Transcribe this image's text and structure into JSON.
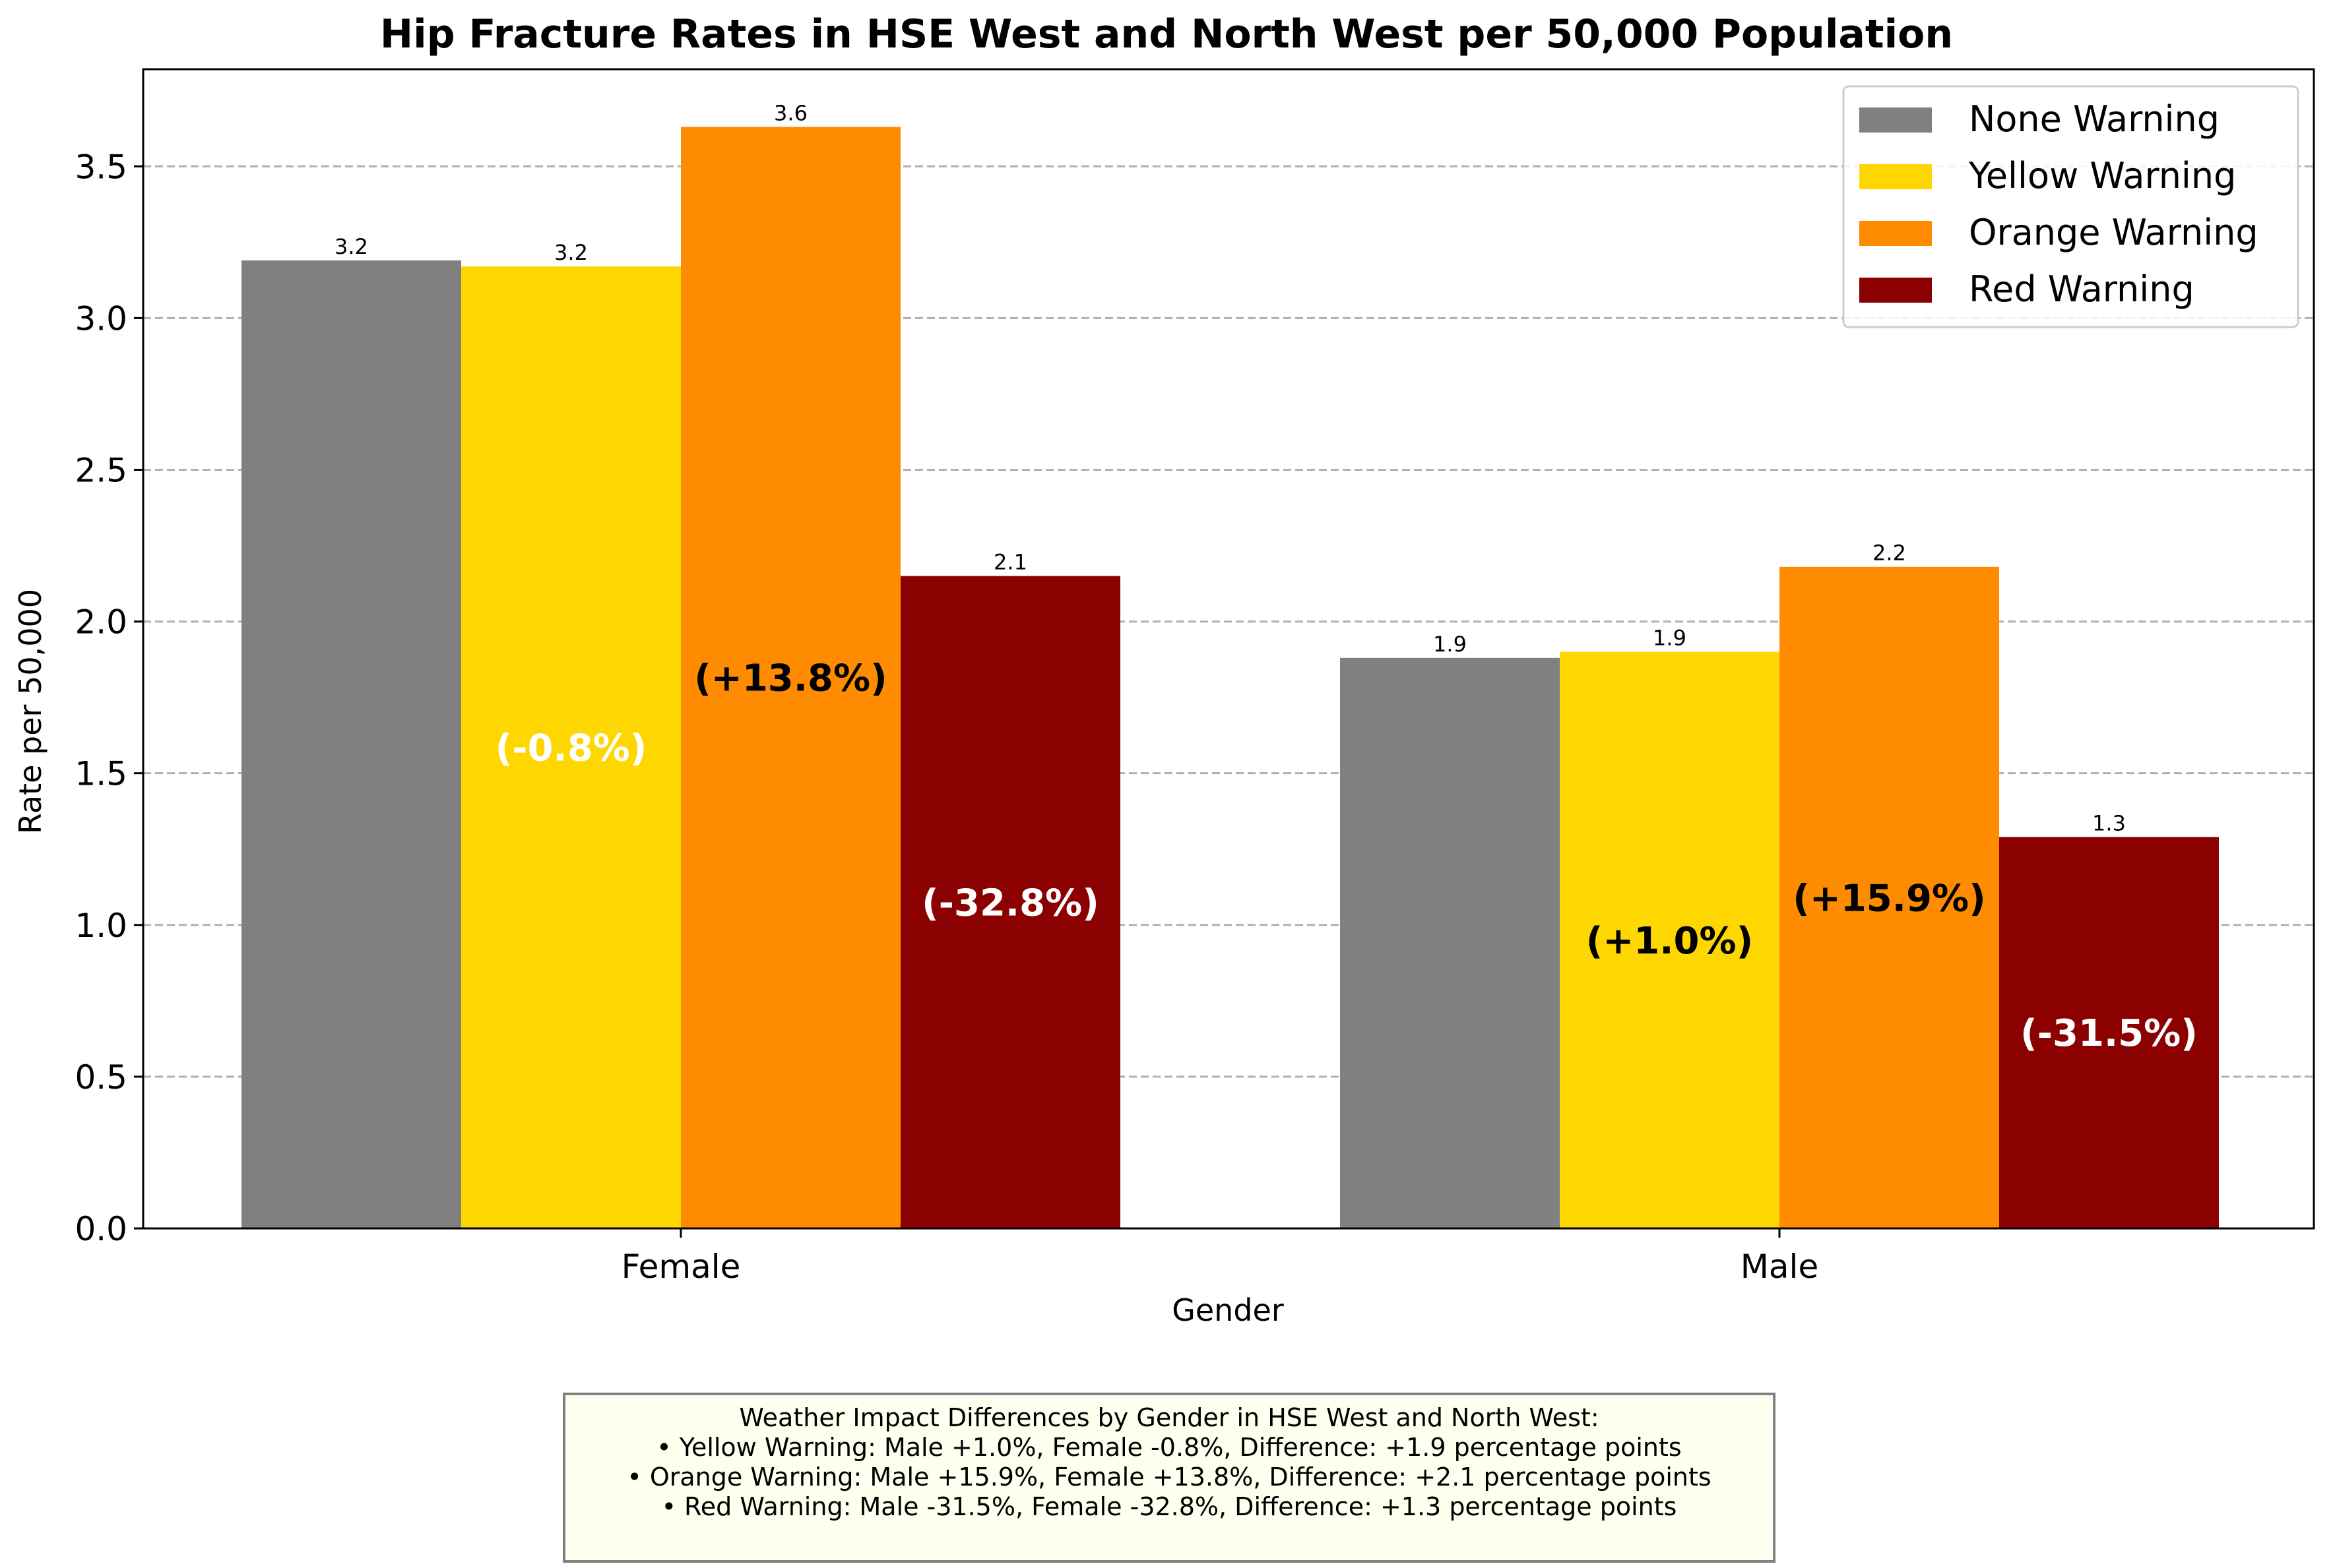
{
  "chart_data": {
    "type": "bar",
    "title": "Hip Fracture Rates in HSE West and North West per 50,000 Population",
    "xlabel": "Gender",
    "ylabel": "Rate per 50,000",
    "categories": [
      "Female",
      "Male"
    ],
    "ylim": [
      0,
      3.82
    ],
    "yticks": [
      0.0,
      0.5,
      1.0,
      1.5,
      2.0,
      2.5,
      3.0,
      3.5
    ],
    "ytick_labels": [
      "0.0",
      "0.5",
      "1.0",
      "1.5",
      "2.0",
      "2.5",
      "3.0",
      "3.5"
    ],
    "grid": "y-dashed",
    "legend_position": "top-right",
    "series": [
      {
        "name": "None Warning",
        "color": "#808080",
        "values": [
          3.19,
          1.88
        ],
        "value_labels": [
          "3.2",
          "1.9"
        ]
      },
      {
        "name": "Yellow Warning",
        "color": "#FFD700",
        "values": [
          3.17,
          1.9
        ],
        "value_labels": [
          "3.2",
          "1.9"
        ],
        "pct_labels": [
          "(-0.8%)",
          "(+1.0%)"
        ],
        "pct_colors": [
          "#ffffff",
          "#000000"
        ]
      },
      {
        "name": "Orange Warning",
        "color": "#FF8C00",
        "values": [
          3.63,
          2.18
        ],
        "value_labels": [
          "3.6",
          "2.2"
        ],
        "pct_labels": [
          "(+13.8%)",
          "(+15.9%)"
        ],
        "pct_colors": [
          "#000000",
          "#000000"
        ]
      },
      {
        "name": "Red Warning",
        "color": "#8B0000",
        "values": [
          2.15,
          1.29
        ],
        "value_labels": [
          "2.1",
          "1.3"
        ],
        "pct_labels": [
          "(-32.8%)",
          "(-31.5%)"
        ],
        "pct_colors": [
          "#ffffff",
          "#ffffff"
        ]
      }
    ]
  },
  "note": {
    "lines": [
      "Weather Impact Differences by Gender in HSE West and North West:",
      "• Yellow Warning: Male +1.0%, Female -0.8%, Difference: +1.9 percentage points",
      "• Orange Warning: Male +15.9%, Female +13.8%, Difference: +2.1 percentage points",
      "• Red Warning: Male -31.5%, Female -32.8%, Difference: +1.3 percentage points"
    ]
  }
}
